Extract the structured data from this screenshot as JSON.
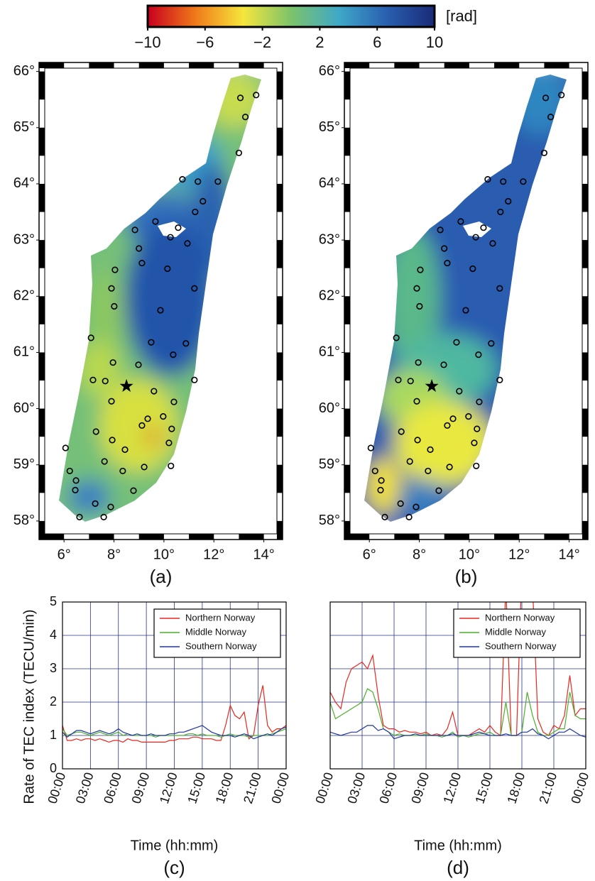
{
  "chart_data": [
    {
      "type": "colorbar",
      "label": "[rad]",
      "colormap": [
        "#c8001e",
        "#f07a1a",
        "#f5e63c",
        "#7cc36a",
        "#3fa8c8",
        "#2a5fb0",
        "#1a2a78"
      ],
      "xlim": [
        -10,
        10
      ],
      "xticks": [
        {
          "value": -10,
          "label": "−10"
        },
        {
          "value": -6,
          "label": "−6"
        },
        {
          "value": -2,
          "label": "−2"
        },
        2,
        6,
        10
      ]
    },
    {
      "type": "map",
      "title": "(a)",
      "xlim": [
        5,
        14.75
      ],
      "ylim": [
        57.67,
        66.16
      ],
      "xticks": [
        {
          "value": 6,
          "label": "6°"
        },
        {
          "value": 8,
          "label": "8°"
        },
        {
          "value": 10,
          "label": "10°"
        },
        {
          "value": 12,
          "label": "12°"
        },
        {
          "value": 14,
          "label": "14°"
        }
      ],
      "yticks": [
        {
          "value": 58,
          "label": "58°"
        },
        {
          "value": 59,
          "label": "59°"
        },
        {
          "value": 60,
          "label": "60°"
        },
        {
          "value": 61,
          "label": "61°"
        },
        {
          "value": 62,
          "label": "62°"
        },
        {
          "value": 63,
          "label": "63°"
        },
        {
          "value": 64,
          "label": "64°"
        },
        {
          "value": 65,
          "label": "65°"
        },
        {
          "value": 66,
          "label": "66°"
        }
      ],
      "stations": {
        "x": [
          13.06,
          13.69,
          13.26,
          13.0,
          10.74,
          11.36,
          12.16,
          11.56,
          11.25,
          9.66,
          10.57,
          8.84,
          9.0,
          10.26,
          10.94,
          8.04,
          9.12,
          10.14,
          11.22,
          7.9,
          8.01,
          9.86,
          10.88,
          7.08,
          9.49,
          10.37,
          7.96,
          8.98,
          11.22,
          7.16,
          7.65,
          9.6,
          7.9,
          10.4,
          9.97,
          9.35,
          9.12,
          10.31,
          6.06,
          7.28,
          7.93,
          8.44,
          10.2,
          10.28,
          6.23,
          7.62,
          8.35,
          9.21,
          8.78,
          6.48,
          6.45,
          7.25,
          7.87,
          6.62,
          7.59
        ],
        "y": [
          65.53,
          65.58,
          65.19,
          64.55,
          64.08,
          64.04,
          64.04,
          63.69,
          63.5,
          63.33,
          63.22,
          63.18,
          62.85,
          63.05,
          62.94,
          62.47,
          62.59,
          62.49,
          62.14,
          62.14,
          61.82,
          61.75,
          61.16,
          61.26,
          61.18,
          60.96,
          60.82,
          60.78,
          60.51,
          60.51,
          60.49,
          60.31,
          60.13,
          60.12,
          59.86,
          59.82,
          59.7,
          59.64,
          59.3,
          59.59,
          59.44,
          59.27,
          59.39,
          58.98,
          58.89,
          59.06,
          58.89,
          58.96,
          58.54,
          58.72,
          58.55,
          58.31,
          58.25,
          58.07,
          58.07
        ]
      },
      "star": {
        "x": 8.5,
        "y": 60.4
      }
    },
    {
      "type": "map",
      "title": "(b)",
      "xlim": [
        5,
        14.75
      ],
      "ylim": [
        57.67,
        66.16
      ],
      "xticks": [
        {
          "value": 6,
          "label": "6°"
        },
        {
          "value": 8,
          "label": "8°"
        },
        {
          "value": 10,
          "label": "10°"
        },
        {
          "value": 12,
          "label": "12°"
        },
        {
          "value": 14,
          "label": "14°"
        }
      ],
      "yticks": [
        {
          "value": 58,
          "label": "58°"
        },
        {
          "value": 59,
          "label": "59°"
        },
        {
          "value": 60,
          "label": "60°"
        },
        {
          "value": 61,
          "label": "61°"
        },
        {
          "value": 62,
          "label": "62°"
        },
        {
          "value": 63,
          "label": "63°"
        },
        {
          "value": 64,
          "label": "64°"
        },
        {
          "value": 65,
          "label": "65°"
        },
        {
          "value": 66,
          "label": "66°"
        }
      ],
      "stations": {
        "x": [
          13.06,
          13.69,
          13.26,
          13.0,
          10.74,
          11.36,
          12.16,
          11.56,
          11.25,
          9.66,
          10.57,
          8.84,
          9.0,
          10.26,
          10.94,
          8.04,
          9.12,
          10.14,
          11.22,
          7.9,
          8.01,
          9.86,
          10.88,
          7.08,
          9.49,
          10.37,
          7.96,
          8.98,
          11.22,
          7.16,
          7.65,
          9.6,
          7.9,
          10.4,
          9.97,
          9.35,
          9.12,
          10.31,
          6.06,
          7.28,
          7.93,
          8.44,
          10.2,
          10.28,
          6.23,
          7.62,
          8.35,
          9.21,
          8.78,
          6.48,
          6.45,
          7.25,
          7.87,
          6.62,
          7.59
        ],
        "y": [
          65.53,
          65.58,
          65.19,
          64.55,
          64.08,
          64.04,
          64.04,
          63.69,
          63.5,
          63.33,
          63.22,
          63.18,
          62.85,
          63.05,
          62.94,
          62.47,
          62.59,
          62.49,
          62.14,
          62.14,
          61.82,
          61.75,
          61.16,
          61.26,
          61.18,
          60.96,
          60.82,
          60.78,
          60.51,
          60.51,
          60.49,
          60.31,
          60.13,
          60.12,
          59.86,
          59.82,
          59.7,
          59.64,
          59.3,
          59.59,
          59.44,
          59.27,
          59.39,
          58.98,
          58.89,
          59.06,
          58.89,
          58.96,
          58.54,
          58.72,
          58.55,
          58.31,
          58.25,
          58.07,
          58.07
        ]
      },
      "star": {
        "x": 8.5,
        "y": 60.4
      }
    },
    {
      "type": "line",
      "title": "(c)",
      "xlabel": "Time (hh:mm)",
      "ylabel": "Rate of TEC index (TECU/min)",
      "x": [
        0,
        0.5,
        1,
        1.5,
        2,
        2.5,
        3,
        3.5,
        4,
        4.5,
        5,
        5.5,
        6,
        6.5,
        7,
        7.5,
        8,
        8.5,
        9,
        9.5,
        10,
        10.5,
        11,
        11.5,
        12,
        12.5,
        13,
        13.5,
        14,
        14.5,
        15,
        15.5,
        16,
        16.5,
        17,
        17.5,
        18,
        18.5,
        19,
        19.5,
        20,
        20.5,
        21,
        21.5,
        22,
        22.5,
        23,
        23.5,
        24
      ],
      "xlim": [
        0,
        24
      ],
      "xticks": [
        {
          "value": 0,
          "label": "00:00"
        },
        {
          "value": 3,
          "label": "03:00"
        },
        {
          "value": 6,
          "label": "06:00"
        },
        {
          "value": 9,
          "label": "09:00"
        },
        {
          "value": 12,
          "label": "12:00"
        },
        {
          "value": 15,
          "label": "15:00"
        },
        {
          "value": 18,
          "label": "18:00"
        },
        {
          "value": 21,
          "label": "21:00"
        },
        {
          "value": 24,
          "label": "00:00"
        }
      ],
      "ylim": [
        0,
        5
      ],
      "yticks": [
        0,
        1,
        2,
        3,
        4,
        5
      ],
      "ytick_labels": true,
      "grid": true,
      "legend": "upper right",
      "series": [
        {
          "name": "Northern Norway",
          "color": "#e8281e",
          "values": [
            1.3,
            0.85,
            0.85,
            0.9,
            0.85,
            0.9,
            0.9,
            0.85,
            0.9,
            0.85,
            0.8,
            0.85,
            0.85,
            0.8,
            0.9,
            0.85,
            0.85,
            0.8,
            0.8,
            0.8,
            0.8,
            0.8,
            0.8,
            0.85,
            0.85,
            0.9,
            0.9,
            0.9,
            0.95,
            0.95,
            0.9,
            0.9,
            0.9,
            0.85,
            0.85,
            1.3,
            1.9,
            1.6,
            1.5,
            1.7,
            0.9,
            1.0,
            1.9,
            2.5,
            1.3,
            1.1,
            1.2,
            1.2,
            1.3
          ]
        },
        {
          "name": "Middle Norway",
          "color": "#4caf2a",
          "values": [
            1.2,
            1.0,
            1.05,
            1.1,
            1.1,
            1.05,
            1.0,
            1.05,
            1.1,
            1.05,
            1.0,
            1.05,
            1.1,
            1.0,
            1.05,
            1.0,
            1.0,
            1.0,
            1.0,
            1.0,
            0.95,
            1.0,
            1.0,
            1.0,
            1.0,
            1.0,
            1.0,
            1.05,
            1.05,
            1.0,
            1.05,
            1.0,
            1.0,
            1.0,
            0.95,
            1.0,
            1.05,
            1.0,
            1.0,
            1.0,
            0.95,
            1.0,
            1.0,
            1.0,
            1.0,
            1.05,
            1.1,
            1.15,
            1.2
          ]
        },
        {
          "name": "Southern Norway",
          "color": "#2034a0",
          "values": [
            1.1,
            0.95,
            1.05,
            1.15,
            1.15,
            1.1,
            1.05,
            1.1,
            1.15,
            1.1,
            1.05,
            1.1,
            1.2,
            1.1,
            1.05,
            1.0,
            1.05,
            1.0,
            1.0,
            1.05,
            1.0,
            1.0,
            1.0,
            1.05,
            1.05,
            1.1,
            1.1,
            1.15,
            1.2,
            1.25,
            1.3,
            1.2,
            1.1,
            1.05,
            1.0,
            1.0,
            1.0,
            0.95,
            1.0,
            1.05,
            1.0,
            0.9,
            0.95,
            1.0,
            1.05,
            1.0,
            1.1,
            1.2,
            1.25
          ]
        }
      ]
    },
    {
      "type": "line",
      "title": "(d)",
      "xlabel": "Time (hh:mm)",
      "x": [
        0,
        0.5,
        1,
        1.5,
        2,
        2.5,
        3,
        3.5,
        4,
        4.5,
        5,
        5.5,
        6,
        6.5,
        7,
        7.5,
        8,
        8.5,
        9,
        9.5,
        10,
        10.5,
        11,
        11.5,
        12,
        12.5,
        13,
        13.5,
        14,
        14.5,
        15,
        15.5,
        16,
        16.5,
        17,
        17.5,
        18,
        18.5,
        19,
        19.5,
        20,
        20.5,
        21,
        21.5,
        22,
        22.5,
        23,
        23.5,
        24
      ],
      "xlim": [
        0,
        24
      ],
      "xticks": [
        {
          "value": 0,
          "label": "00:00"
        },
        {
          "value": 3,
          "label": "03:00"
        },
        {
          "value": 6,
          "label": "06:00"
        },
        {
          "value": 9,
          "label": "09:00"
        },
        {
          "value": 12,
          "label": "12:00"
        },
        {
          "value": 15,
          "label": "15:00"
        },
        {
          "value": 18,
          "label": "18:00"
        },
        {
          "value": 21,
          "label": "21:00"
        },
        {
          "value": 24,
          "label": "00:00"
        }
      ],
      "ylim": [
        0,
        5
      ],
      "yticks": [
        0,
        1,
        2,
        3,
        4,
        5
      ],
      "ytick_labels": false,
      "grid": true,
      "legend": "upper right",
      "series": [
        {
          "name": "Northern Norway",
          "color": "#e8281e",
          "values": [
            2.3,
            2.0,
            1.8,
            2.6,
            3.0,
            3.1,
            3.2,
            3.0,
            3.4,
            2.2,
            1.3,
            1.2,
            1.2,
            1.1,
            1.15,
            1.1,
            1.1,
            1.05,
            1.1,
            1.0,
            1.05,
            1.0,
            1.2,
            1.7,
            1.0,
            1.0,
            1.0,
            1.1,
            1.2,
            1.1,
            1.3,
            1.1,
            1.0,
            5.5,
            1.0,
            1.0,
            6.0,
            6.0,
            5.5,
            1.5,
            1.1,
            1.0,
            1.3,
            1.2,
            1.6,
            2.8,
            1.6,
            1.8,
            1.8
          ]
        },
        {
          "name": "Middle Norway",
          "color": "#4caf2a",
          "values": [
            2.0,
            1.5,
            1.6,
            1.7,
            1.8,
            1.9,
            2.0,
            2.4,
            2.3,
            1.8,
            1.2,
            1.1,
            1.0,
            1.05,
            1.0,
            1.0,
            1.0,
            1.0,
            1.05,
            1.0,
            1.0,
            0.95,
            1.0,
            1.1,
            0.95,
            1.0,
            0.95,
            1.0,
            1.05,
            1.05,
            1.1,
            1.0,
            1.0,
            2.0,
            1.0,
            1.0,
            1.1,
            2.3,
            1.6,
            1.1,
            1.0,
            1.0,
            1.1,
            1.2,
            1.2,
            2.3,
            1.6,
            1.5,
            1.5
          ]
        },
        {
          "name": "Southern Norway",
          "color": "#2034a0",
          "values": [
            1.1,
            1.05,
            1.0,
            1.05,
            1.1,
            1.1,
            1.2,
            1.3,
            1.3,
            1.15,
            1.2,
            1.1,
            0.9,
            0.95,
            1.0,
            1.0,
            1.05,
            1.0,
            1.0,
            1.0,
            1.0,
            1.0,
            1.0,
            1.05,
            1.0,
            1.0,
            1.0,
            1.05,
            1.1,
            1.05,
            1.0,
            1.0,
            1.0,
            1.05,
            1.0,
            1.0,
            1.1,
            1.1,
            1.2,
            1.05,
            1.0,
            0.9,
            1.0,
            1.1,
            1.1,
            1.2,
            1.1,
            1.0,
            0.95
          ]
        }
      ]
    }
  ]
}
